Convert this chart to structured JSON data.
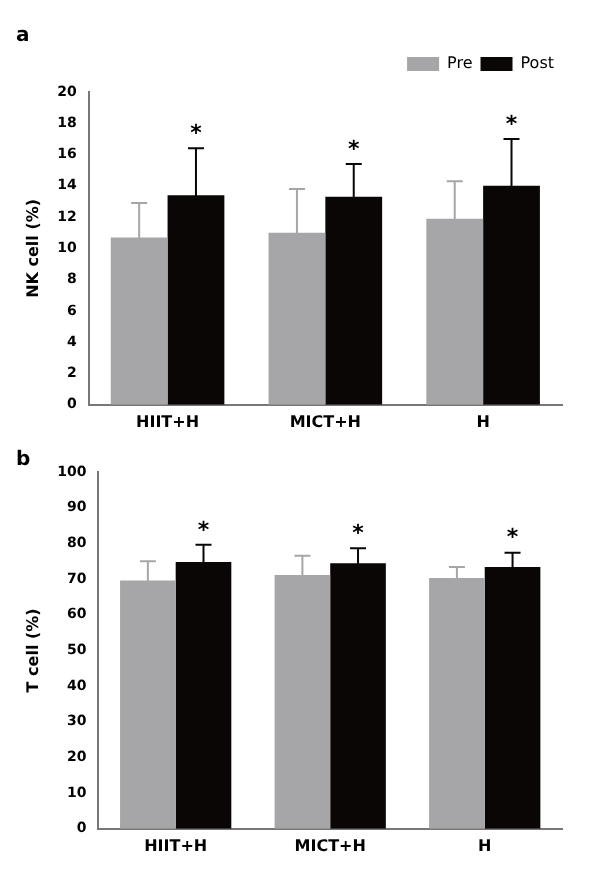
{
  "chart_data": [
    {
      "type": "bar",
      "title": "a",
      "ylabel": "NK cell (%)",
      "categories": [
        "HIIT+H",
        "MICT+H",
        "H"
      ],
      "legend": "top right",
      "ylim": [
        0,
        20
      ],
      "yticks": [
        0,
        2,
        4,
        6,
        8,
        10,
        12,
        14,
        16,
        18,
        20
      ],
      "grid": false,
      "series": [
        {
          "name": "Pre",
          "color": "#a6a6a8",
          "values": [
            10.7,
            11.0,
            11.9
          ],
          "errors": [
            2.2,
            2.8,
            2.4
          ]
        },
        {
          "name": "Post",
          "color": "#0a0606",
          "values": [
            13.4,
            13.3,
            14.0
          ],
          "errors": [
            3.0,
            2.1,
            3.0
          ]
        }
      ],
      "annotations": [
        "*",
        "*",
        "*"
      ]
    },
    {
      "type": "bar",
      "title": "b",
      "ylabel": "T cell (%)",
      "categories": [
        "HIIT+H",
        "MICT+H",
        "H"
      ],
      "ylim": [
        0,
        100
      ],
      "yticks": [
        0,
        10,
        20,
        30,
        40,
        50,
        60,
        70,
        80,
        90,
        100
      ],
      "grid": false,
      "series": [
        {
          "color": "#a6a6a8",
          "values": [
            69.6,
            71.1,
            70.3
          ],
          "errors": [
            5.4,
            5.4,
            3.1
          ]
        },
        {
          "color": "#0a0606",
          "values": [
            74.8,
            74.4,
            73.4
          ],
          "errors": [
            4.8,
            4.2,
            4.0
          ]
        }
      ],
      "annotations": [
        "*",
        "*",
        "*"
      ]
    }
  ]
}
